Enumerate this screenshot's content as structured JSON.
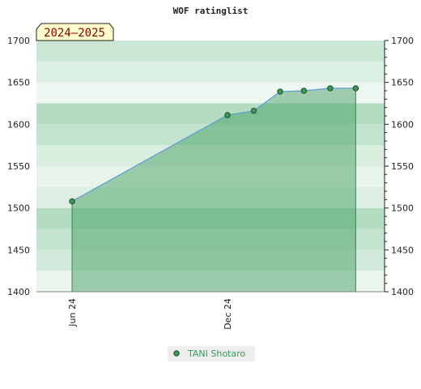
{
  "chart_data": {
    "type": "area",
    "title": "WOF ratinglist",
    "season_label": "2024–2025",
    "x_ticks": [
      "Jun 24",
      "Dec 24"
    ],
    "ylim": [
      1400,
      1700
    ],
    "y_ticks": [
      1400,
      1450,
      1500,
      1550,
      1600,
      1650,
      1700
    ],
    "grid": true,
    "legend_position": "bottom-center",
    "series": [
      {
        "name": "TANI Shotaro",
        "color": "#3a9a5a",
        "x": [
          "2024-06-01",
          "2024-12-01",
          "2025-01-01",
          "2025-02-01",
          "2025-03-01",
          "2025-04-01",
          "2025-05-01"
        ],
        "values": [
          1508,
          1611,
          1616,
          1639,
          1640,
          1643,
          1643
        ]
      }
    ]
  }
}
